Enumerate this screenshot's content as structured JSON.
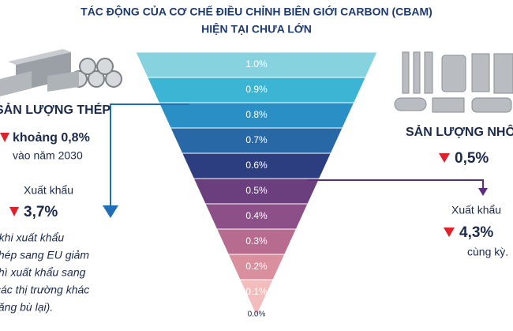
{
  "header": {
    "title_line1": "TÁC ĐỘNG CỦA CƠ CHẾ ĐIỀU CHỈNH BIÊN GIỚI CARBON (CBAM)",
    "title_line2": "HIỆN TẠI CHƯA LỚN"
  },
  "funnel": {
    "levels": [
      "1.0%",
      "0.9%",
      "0.8%",
      "0.7%",
      "0.6%",
      "0.5%",
      "0.4%",
      "0.3%",
      "0.2%",
      "0.1%"
    ],
    "bottom": "0.0%"
  },
  "left": {
    "heading": "SẢN LƯỢNG THÉP",
    "output_change": "khoảng 0,8%",
    "output_year": "vào năm 2030",
    "export_label": "Xuất khẩu",
    "export_change": "3,7%",
    "note": [
      "(khi xuất khẩu",
      "thép sang EU giảm",
      "thì xuất khẩu sang",
      "các thị trường khác",
      "tăng bù lại)."
    ]
  },
  "right": {
    "heading": "SẢN LƯỢNG NHÔM",
    "output_change": "0,5%",
    "export_label": "Xuất khẩu",
    "export_change": "4,3%",
    "note": "cùng kỳ."
  }
}
